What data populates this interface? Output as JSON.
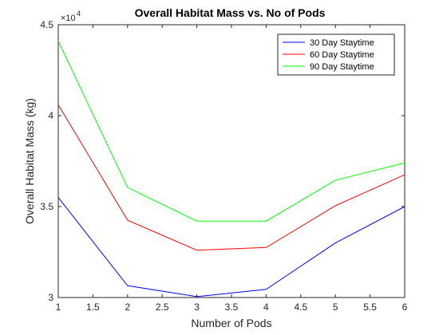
{
  "chart_data": {
    "type": "line",
    "title": "Overall Habitat Mass vs. No of Pods",
    "xlabel": "Number of Pods",
    "ylabel": "Overall Habitat Mass (kg)",
    "y_exponent_label": "×10",
    "y_exponent_power": "4",
    "xlim": [
      1,
      6
    ],
    "ylim": [
      30000,
      45000
    ],
    "x_ticks": [
      1,
      1.5,
      2,
      2.5,
      3,
      3.5,
      4,
      4.5,
      5,
      5.5,
      6
    ],
    "x_tick_labels": [
      "1",
      "1.5",
      "2",
      "2.5",
      "3",
      "3.5",
      "4",
      "4.5",
      "5",
      "5.5",
      "6"
    ],
    "y_ticks": [
      30000,
      35000,
      40000,
      45000
    ],
    "y_tick_labels": [
      "3",
      "3.5",
      "4",
      "4.5"
    ],
    "grid": false,
    "legend_position": "top-right",
    "x": [
      1,
      2,
      3,
      4,
      5,
      6
    ],
    "series": [
      {
        "name": "30 Day Staytime",
        "color": "#0000ff",
        "values": [
          35500,
          30650,
          30050,
          30450,
          33000,
          35000
        ]
      },
      {
        "name": "60 Day Staytime",
        "color": "#ff0000",
        "values": [
          40600,
          34250,
          32600,
          32750,
          35050,
          36750
        ]
      },
      {
        "name": "90 Day Staytime",
        "color": "#00ff00",
        "values": [
          44100,
          36050,
          34200,
          34200,
          36450,
          37400
        ]
      }
    ]
  }
}
